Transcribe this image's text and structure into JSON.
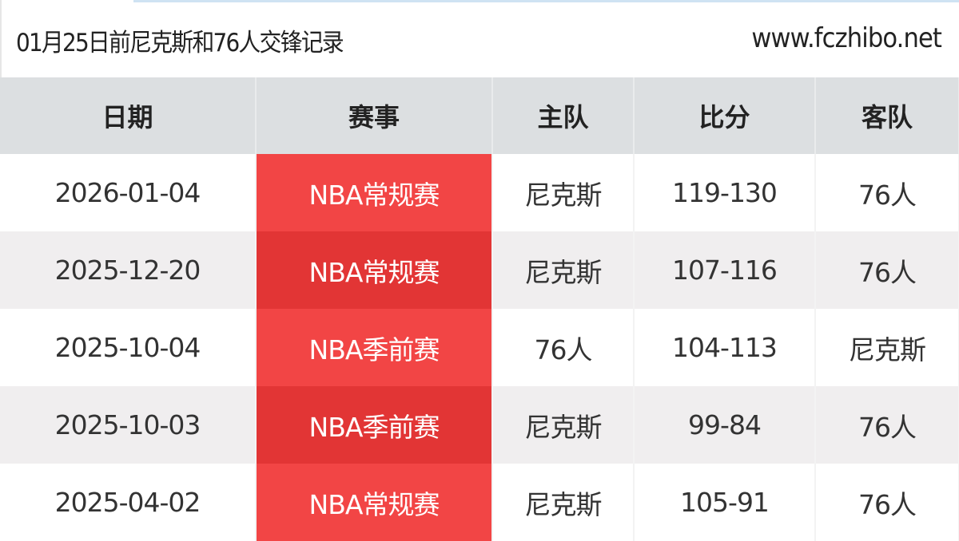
{
  "title": "01月25日前尼克斯和76人交锋记录",
  "site": "www.fczhibo.net",
  "colors": {
    "competition_bg": "#f24545",
    "competition_bg_alt": "#e23535",
    "header_bg": "#dcdfe1"
  },
  "columns": [
    "日期",
    "赛事",
    "主队",
    "比分",
    "客队"
  ],
  "rows": [
    {
      "date": "2026-01-04",
      "competition": "NBA常规赛",
      "home": "尼克斯",
      "score": "119-130",
      "away": "76人"
    },
    {
      "date": "2025-12-20",
      "competition": "NBA常规赛",
      "home": "尼克斯",
      "score": "107-116",
      "away": "76人"
    },
    {
      "date": "2025-10-04",
      "competition": "NBA季前赛",
      "home": "76人",
      "score": "104-113",
      "away": "尼克斯"
    },
    {
      "date": "2025-10-03",
      "competition": "NBA季前赛",
      "home": "尼克斯",
      "score": "99-84",
      "away": "76人"
    },
    {
      "date": "2025-04-02",
      "competition": "NBA常规赛",
      "home": "尼克斯",
      "score": "105-91",
      "away": "76人"
    }
  ]
}
